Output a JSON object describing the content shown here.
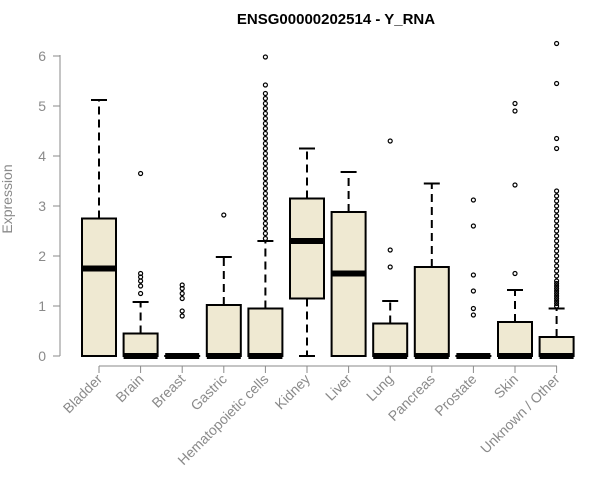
{
  "chart_data": {
    "type": "boxplot",
    "title": "ENSG00000202514 - Y_RNA",
    "xlabel": "",
    "ylabel": "Expression",
    "ylim": [
      0,
      6.3
    ],
    "yticks": [
      0,
      1,
      2,
      3,
      4,
      5,
      6
    ],
    "grid": false,
    "colors": {
      "box_fill": "#efe9d2",
      "stroke": "#000000",
      "tick_text": "#8a8a8a"
    },
    "categories": [
      "Bladder",
      "Brain",
      "Breast",
      "Gastric",
      "Hematopoietic cells",
      "Kidney",
      "Liver",
      "Lung",
      "Pancreas",
      "Prostate",
      "Skin",
      "Unknown / Other"
    ],
    "boxes": [
      {
        "category": "Bladder",
        "min": 0,
        "q1": 0,
        "median": 1.75,
        "q3": 2.75,
        "max": 5.12,
        "outliers": []
      },
      {
        "category": "Brain",
        "min": 0,
        "q1": 0,
        "median": 0,
        "q3": 0.45,
        "max": 1.08,
        "outliers": [
          1.25,
          1.4,
          1.5,
          1.58,
          1.65,
          3.65
        ]
      },
      {
        "category": "Breast",
        "min": 0,
        "q1": 0,
        "median": 0,
        "q3": 0,
        "max": 0,
        "outliers": [
          0.8,
          0.9,
          1.15,
          1.25,
          1.35,
          1.42
        ]
      },
      {
        "category": "Gastric",
        "min": 0,
        "q1": 0,
        "median": 0,
        "q3": 1.02,
        "max": 1.98,
        "outliers": [
          2.82
        ]
      },
      {
        "category": "Hematopoietic cells",
        "min": 0,
        "q1": 0,
        "median": 0,
        "q3": 0.95,
        "max": 2.3,
        "outliers": [
          2.35,
          2.45,
          2.55,
          2.65,
          2.75,
          2.85,
          2.95,
          3.05,
          3.15,
          3.25,
          3.35,
          3.45,
          3.55,
          3.65,
          3.75,
          3.85,
          3.95,
          4.05,
          4.15,
          4.25,
          4.35,
          4.45,
          4.55,
          4.65,
          4.75,
          4.85,
          4.95,
          5.05,
          5.15,
          5.25,
          5.42,
          5.98
        ]
      },
      {
        "category": "Kidney",
        "min": 0,
        "q1": 1.15,
        "median": 2.3,
        "q3": 3.15,
        "max": 4.15,
        "outliers": []
      },
      {
        "category": "Liver",
        "min": 0,
        "q1": 0,
        "median": 1.65,
        "q3": 2.88,
        "max": 3.68,
        "outliers": []
      },
      {
        "category": "Lung",
        "min": 0,
        "q1": 0,
        "median": 0,
        "q3": 0.65,
        "max": 1.1,
        "outliers": [
          1.78,
          2.12,
          4.3
        ]
      },
      {
        "category": "Pancreas",
        "min": 0,
        "q1": 0,
        "median": 0,
        "q3": 1.78,
        "max": 3.45,
        "outliers": []
      },
      {
        "category": "Prostate",
        "min": 0,
        "q1": 0,
        "median": 0,
        "q3": 0,
        "max": 0,
        "outliers": [
          0.82,
          0.95,
          1.3,
          1.62,
          2.6,
          3.12
        ]
      },
      {
        "category": "Skin",
        "min": 0,
        "q1": 0,
        "median": 0,
        "q3": 0.68,
        "max": 1.32,
        "outliers": [
          1.65,
          3.42,
          4.9,
          5.05
        ]
      },
      {
        "category": "Unknown / Other",
        "min": 0,
        "q1": 0,
        "median": 0,
        "q3": 0.38,
        "max": 0.95,
        "outliers": [
          1.0,
          1.05,
          1.1,
          1.15,
          1.2,
          1.25,
          1.3,
          1.35,
          1.4,
          1.45,
          1.5,
          1.6,
          1.7,
          1.8,
          1.9,
          2.0,
          2.1,
          2.2,
          2.3,
          2.4,
          2.5,
          2.6,
          2.7,
          2.8,
          2.9,
          3.0,
          3.1,
          3.2,
          3.3,
          4.15,
          4.35,
          5.45,
          6.25
        ]
      }
    ]
  }
}
